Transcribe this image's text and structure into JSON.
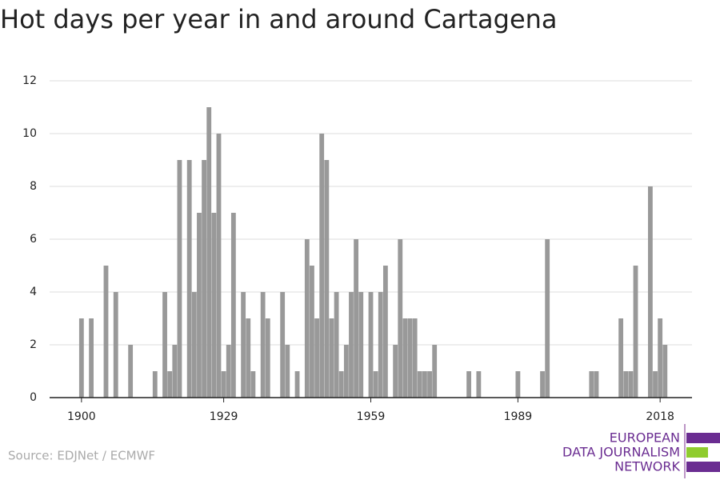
{
  "chart_data": {
    "type": "bar",
    "title": "Hot days per year in and around Cartagena",
    "x": [
      1900,
      1902,
      1905,
      1907,
      1910,
      1915,
      1917,
      1918,
      1919,
      1920,
      1922,
      1923,
      1924,
      1925,
      1926,
      1927,
      1928,
      1929,
      1930,
      1931,
      1933,
      1934,
      1935,
      1937,
      1938,
      1941,
      1942,
      1944,
      1946,
      1947,
      1948,
      1949,
      1950,
      1951,
      1952,
      1953,
      1954,
      1955,
      1956,
      1957,
      1959,
      1960,
      1961,
      1962,
      1964,
      1965,
      1966,
      1967,
      1968,
      1969,
      1970,
      1971,
      1972,
      1979,
      1981,
      1989,
      1994,
      1995,
      2004,
      2005,
      2010,
      2011,
      2012,
      2013,
      2016,
      2017,
      2018,
      2019
    ],
    "values": [
      3,
      3,
      5,
      4,
      2,
      1,
      4,
      1,
      2,
      9,
      9,
      4,
      7,
      9,
      11,
      7,
      10,
      1,
      2,
      7,
      4,
      3,
      1,
      4,
      3,
      4,
      2,
      1,
      6,
      5,
      3,
      10,
      9,
      3,
      4,
      1,
      2,
      4,
      6,
      4,
      4,
      1,
      4,
      5,
      2,
      6,
      3,
      3,
      3,
      1,
      1,
      1,
      2,
      1,
      1,
      1,
      1,
      6,
      1,
      1,
      3,
      1,
      1,
      5,
      8,
      1,
      3,
      2
    ],
    "color": "#999999",
    "xlim": [
      1893.5,
      2024.5
    ],
    "xticks": [
      1900,
      1929,
      1959,
      1989,
      2018
    ],
    "ylim": [
      0,
      12
    ],
    "yticks": [
      0,
      2,
      4,
      6,
      8,
      10,
      12
    ],
    "grid": true,
    "source": "Source: EDJNet / ECMWF",
    "logo": [
      "EUROPEAN",
      "DATA JOURNALISM",
      "NETWORK"
    ]
  }
}
